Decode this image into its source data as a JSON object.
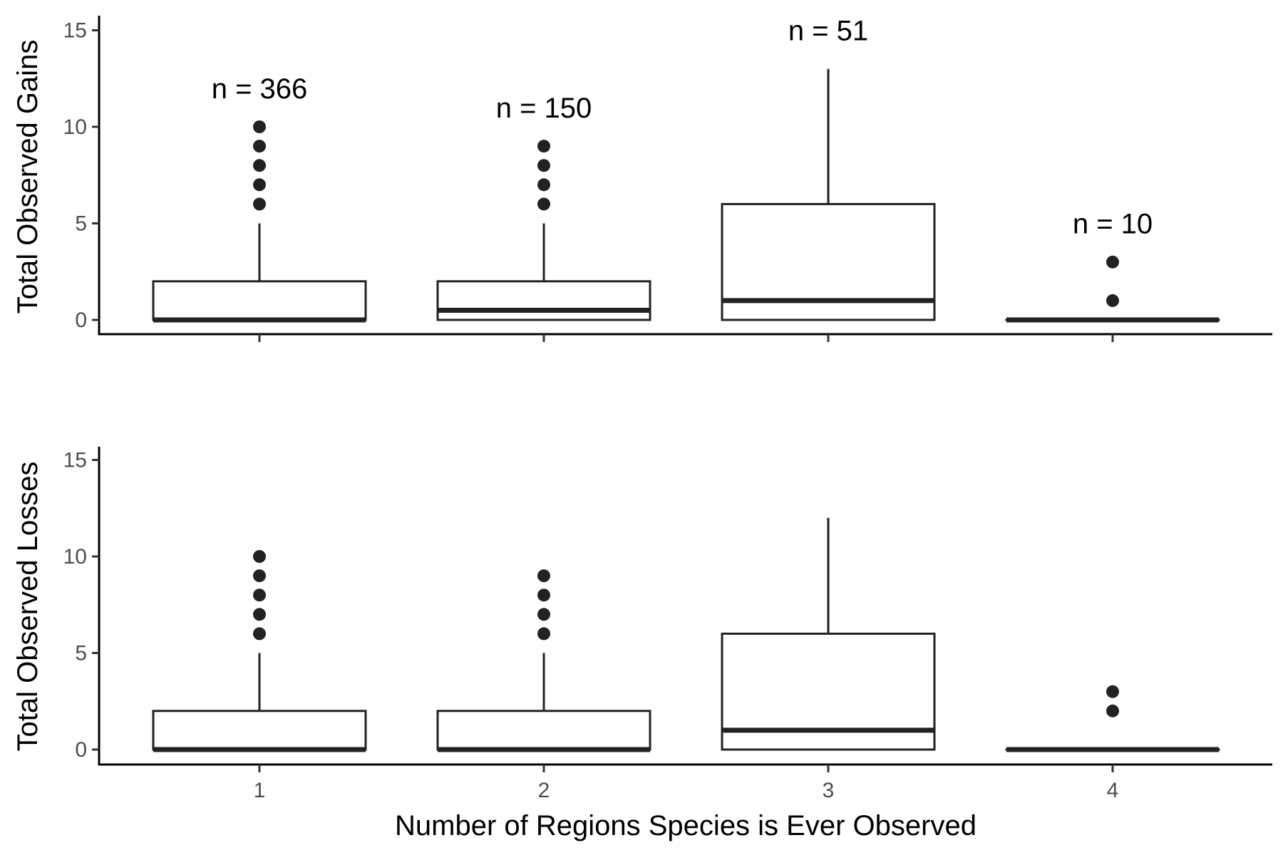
{
  "chart_data": [
    {
      "type": "box",
      "ylabel": "Total Observed Gains",
      "xlabel": "",
      "ylim": [
        0,
        15
      ],
      "yticks": [
        0,
        5,
        10,
        15
      ],
      "categories": [
        "1",
        "2",
        "3",
        "4"
      ],
      "boxes": [
        {
          "category": "1",
          "q1": 0,
          "median": 0,
          "q3": 2,
          "whisker_low": 0,
          "whisker_high": 5,
          "outliers": [
            6,
            7,
            8,
            9,
            10
          ],
          "n_label": "n = 366"
        },
        {
          "category": "2",
          "q1": 0,
          "median": 0.5,
          "q3": 2,
          "whisker_low": 0,
          "whisker_high": 5,
          "outliers": [
            6,
            7,
            8,
            9
          ],
          "n_label": "n = 150"
        },
        {
          "category": "3",
          "q1": 0,
          "median": 1,
          "q3": 6,
          "whisker_low": 0,
          "whisker_high": 13,
          "outliers": [],
          "n_label": "n = 51"
        },
        {
          "category": "4",
          "q1": 0,
          "median": 0,
          "q3": 0,
          "whisker_low": 0,
          "whisker_high": 0,
          "outliers": [
            1,
            3
          ],
          "n_label": "n = 10"
        }
      ]
    },
    {
      "type": "box",
      "ylabel": "Total Observed Losses",
      "xlabel": "Number of Regions Species is Ever Observed",
      "ylim": [
        0,
        15
      ],
      "yticks": [
        0,
        5,
        10,
        15
      ],
      "categories": [
        "1",
        "2",
        "3",
        "4"
      ],
      "boxes": [
        {
          "category": "1",
          "q1": 0,
          "median": 0,
          "q3": 2,
          "whisker_low": 0,
          "whisker_high": 5,
          "outliers": [
            6,
            7,
            8,
            9,
            10
          ]
        },
        {
          "category": "2",
          "q1": 0,
          "median": 0,
          "q3": 2,
          "whisker_low": 0,
          "whisker_high": 5,
          "outliers": [
            6,
            7,
            8,
            9
          ]
        },
        {
          "category": "3",
          "q1": 0,
          "median": 1,
          "q3": 6,
          "whisker_low": 0,
          "whisker_high": 12,
          "outliers": []
        },
        {
          "category": "4",
          "q1": 0,
          "median": 0,
          "q3": 0,
          "whisker_low": 0,
          "whisker_high": 0,
          "outliers": [
            2,
            3
          ]
        }
      ]
    }
  ]
}
